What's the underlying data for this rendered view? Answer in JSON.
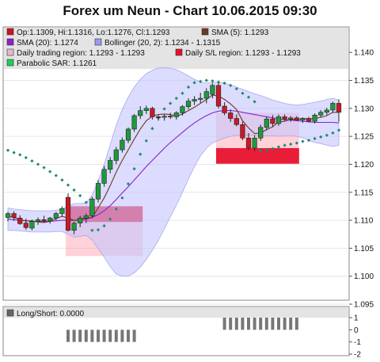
{
  "chart_data": {
    "title": "Forex um Neun - Chart 10.06.2015 09:30",
    "type": "candlestick",
    "ylim": [
      1.095,
      1.143
    ],
    "yticks": [
      "1.095",
      "1.100",
      "1.105",
      "1.110",
      "1.115",
      "1.120",
      "1.125",
      "1.130",
      "1.135",
      "1.140"
    ],
    "legend": [
      {
        "label": "Op:1.1309, Hi:1.1316, Lo:1.1276, Cl:1.1293",
        "color": "#cc1122"
      },
      {
        "label": "SMA (5): 1.1293",
        "color": "#6b3a22"
      },
      {
        "label": "SMA (20): 1.1274",
        "color": "#8a22cc"
      },
      {
        "label": "Bollinger (20, 2): 1.1234 - 1.1315",
        "color": "#9999ee"
      },
      {
        "label": "Daily trading region: 1.1293 - 1.1293",
        "color": "#e8b8c8"
      },
      {
        "label": "Daily S/L region: 1.1293 - 1.1293",
        "color": "#e8112d"
      },
      {
        "label": "Parabolic SAR: 1.1261",
        "color": "#22cc55"
      }
    ],
    "candles": [
      [
        1.1105,
        1.1115,
        1.1098,
        1.1112
      ],
      [
        1.1112,
        1.1116,
        1.1099,
        1.1105
      ],
      [
        1.1104,
        1.1109,
        1.1092,
        1.1094
      ],
      [
        1.1095,
        1.1103,
        1.1083,
        1.1087
      ],
      [
        1.1086,
        1.1101,
        1.1082,
        1.1098
      ],
      [
        1.1098,
        1.1105,
        1.1092,
        1.1101
      ],
      [
        1.1101,
        1.1108,
        1.1096,
        1.1099
      ],
      [
        1.1099,
        1.1106,
        1.1094,
        1.1104
      ],
      [
        1.1104,
        1.1115,
        1.11,
        1.1112
      ],
      [
        1.1112,
        1.1125,
        1.1107,
        1.1121
      ],
      [
        1.1141,
        1.1148,
        1.108,
        1.1082
      ],
      [
        1.1082,
        1.1097,
        1.1075,
        1.1095
      ],
      [
        1.1095,
        1.1108,
        1.1088,
        1.1104
      ],
      [
        1.1104,
        1.1112,
        1.1095,
        1.1108
      ],
      [
        1.1108,
        1.1142,
        1.1104,
        1.1138
      ],
      [
        1.1138,
        1.1172,
        1.1132,
        1.1166
      ],
      [
        1.1166,
        1.1197,
        1.116,
        1.1191
      ],
      [
        1.1191,
        1.1213,
        1.1184,
        1.1207
      ],
      [
        1.1207,
        1.1231,
        1.12,
        1.1226
      ],
      [
        1.1226,
        1.1248,
        1.1221,
        1.1243
      ],
      [
        1.1243,
        1.1266,
        1.1238,
        1.1263
      ],
      [
        1.1263,
        1.129,
        1.1258,
        1.1287
      ],
      [
        1.1287,
        1.1304,
        1.1281,
        1.1296
      ],
      [
        1.1296,
        1.1305,
        1.129,
        1.13
      ],
      [
        1.13,
        1.1303,
        1.128,
        1.1285
      ],
      [
        1.1285,
        1.1288,
        1.1278,
        1.1284
      ],
      [
        1.1284,
        1.1289,
        1.1278,
        1.1286
      ],
      [
        1.1286,
        1.1292,
        1.1281,
        1.1285
      ],
      [
        1.1285,
        1.1295,
        1.128,
        1.1292
      ],
      [
        1.1292,
        1.1306,
        1.1287,
        1.1303
      ],
      [
        1.1303,
        1.1318,
        1.1298,
        1.1313
      ],
      [
        1.1313,
        1.1322,
        1.1306,
        1.1316
      ],
      [
        1.1316,
        1.1328,
        1.131,
        1.1318
      ],
      [
        1.1318,
        1.1336,
        1.1309,
        1.133
      ],
      [
        1.1325,
        1.1345,
        1.1318,
        1.1341
      ],
      [
        1.1341,
        1.1346,
        1.13,
        1.1304
      ],
      [
        1.1304,
        1.1311,
        1.1288,
        1.1292
      ],
      [
        1.1292,
        1.1298,
        1.1276,
        1.1282
      ],
      [
        1.1282,
        1.1289,
        1.1268,
        1.1271
      ],
      [
        1.1271,
        1.1276,
        1.1243,
        1.1247
      ],
      [
        1.1247,
        1.1256,
        1.1225,
        1.1229
      ],
      [
        1.1229,
        1.1252,
        1.1224,
        1.1247
      ],
      [
        1.1247,
        1.1271,
        1.1242,
        1.1266
      ],
      [
        1.1266,
        1.1286,
        1.1261,
        1.1281
      ],
      [
        1.1281,
        1.1288,
        1.1268,
        1.1273
      ],
      [
        1.1273,
        1.1289,
        1.1269,
        1.1285
      ],
      [
        1.1285,
        1.1289,
        1.1278,
        1.1281
      ],
      [
        1.1281,
        1.1286,
        1.1276,
        1.1283
      ],
      [
        1.1283,
        1.1286,
        1.1278,
        1.1279
      ],
      [
        1.1279,
        1.1284,
        1.1274,
        1.1282
      ],
      [
        1.1282,
        1.1285,
        1.1275,
        1.1277
      ],
      [
        1.1277,
        1.1291,
        1.1273,
        1.1288
      ],
      [
        1.1288,
        1.1297,
        1.1284,
        1.1293
      ],
      [
        1.1293,
        1.1301,
        1.1288,
        1.1297
      ],
      [
        1.1297,
        1.1312,
        1.1292,
        1.1309
      ],
      [
        1.1309,
        1.1316,
        1.1276,
        1.1293
      ]
    ],
    "sma5": [
      1.1107,
      1.1105,
      1.1101,
      1.1099,
      1.1099,
      1.1097,
      1.1096,
      1.1098,
      1.1103,
      1.1107,
      1.1104,
      1.11,
      1.1101,
      1.1104,
      1.1105,
      1.1122,
      1.114,
      1.1162,
      1.1186,
      1.1207,
      1.1226,
      1.1245,
      1.1263,
      1.1278,
      1.1286,
      1.1289,
      1.129,
      1.1289,
      1.1286,
      1.129,
      1.1296,
      1.1302,
      1.1309,
      1.1316,
      1.1324,
      1.1322,
      1.1316,
      1.1308,
      1.1298,
      1.1278,
      1.1265,
      1.1255,
      1.1256,
      1.1262,
      1.1267,
      1.1276,
      1.1277,
      1.128,
      1.128,
      1.1282,
      1.1281,
      1.1282,
      1.1284,
      1.1287,
      1.1293,
      1.1293
    ],
    "sma20": [
      1.1102,
      1.1101,
      1.11,
      1.1099,
      1.1098,
      1.1098,
      1.1098,
      1.1098,
      1.1099,
      1.11,
      1.11,
      1.11,
      1.1101,
      1.1102,
      1.1105,
      1.111,
      1.1117,
      1.1126,
      1.1137,
      1.1149,
      1.116,
      1.1172,
      1.1184,
      1.1196,
      1.1207,
      1.1218,
      1.1229,
      1.1239,
      1.1248,
      1.1257,
      1.1266,
      1.1274,
      1.1281,
      1.1287,
      1.1292,
      1.1295,
      1.1296,
      1.1296,
      1.1295,
      1.1293,
      1.1291,
      1.1289,
      1.1287,
      1.1285,
      1.1283,
      1.1281,
      1.128,
      1.1279,
      1.1278,
      1.1277,
      1.1276,
      1.1275,
      1.1275,
      1.1275,
      1.1275,
      1.1274
    ],
    "bb_upper": [
      1.1122,
      1.112,
      1.1119,
      1.1118,
      1.1117,
      1.1117,
      1.1117,
      1.1117,
      1.1118,
      1.112,
      1.1125,
      1.113,
      1.113,
      1.1131,
      1.1145,
      1.117,
      1.12,
      1.1235,
      1.127,
      1.1298,
      1.132,
      1.1338,
      1.1352,
      1.1362,
      1.1368,
      1.1372,
      1.1373,
      1.1372,
      1.1369,
      1.1364,
      1.1358,
      1.1352,
      1.1347,
      1.1345,
      1.1346,
      1.1347,
      1.1345,
      1.1342,
      1.1338,
      1.1334,
      1.133,
      1.1326,
      1.1323,
      1.1319,
      1.1315,
      1.1312,
      1.1309,
      1.1307,
      1.1306,
      1.1307,
      1.1309,
      1.1311,
      1.1313,
      1.1316,
      1.1318,
      1.1315
    ],
    "bb_lower": [
      1.1082,
      1.1082,
      1.1081,
      1.108,
      1.1079,
      1.1079,
      1.1079,
      1.1079,
      1.108,
      1.108,
      1.1075,
      1.107,
      1.1071,
      1.1073,
      1.1065,
      1.105,
      1.1034,
      1.1017,
      1.1004,
      1.1,
      1.1,
      1.1006,
      1.1016,
      1.103,
      1.1046,
      1.1064,
      1.1085,
      1.1106,
      1.1127,
      1.115,
      1.1174,
      1.1196,
      1.1215,
      1.1229,
      1.1238,
      1.1243,
      1.1247,
      1.125,
      1.1252,
      1.1252,
      1.1252,
      1.1252,
      1.1251,
      1.1251,
      1.1251,
      1.125,
      1.1251,
      1.1251,
      1.125,
      1.1247,
      1.1243,
      1.1239,
      1.1237,
      1.1234,
      1.1232,
      1.1234
    ],
    "sar": [
      1.1225,
      1.1221,
      1.1217,
      1.1212,
      1.1206,
      1.12,
      1.1194,
      1.1187,
      1.118,
      1.1172,
      1.1163,
      1.1154,
      1.1144,
      1.1132,
      1.1082,
      1.1083,
      1.109,
      1.1102,
      1.112,
      1.114,
      1.1165,
      1.1192,
      1.1218,
      1.1242,
      1.1264,
      1.1283,
      1.1299,
      1.1309,
      1.1318,
      1.1327,
      1.1338,
      1.1346,
      1.1348,
      1.135,
      1.1349,
      1.1347,
      1.1345,
      1.1341,
      1.1335,
      1.1327,
      1.132,
      1.1312,
      1.1224,
      1.1226,
      1.1228,
      1.1231,
      1.1234,
      1.1236,
      1.1238,
      1.1241,
      1.1243,
      1.1246,
      1.1249,
      1.1252,
      1.1256,
      1.1261
    ],
    "trading_regions": [
      {
        "start": 10,
        "end": 22,
        "high": 1.1125,
        "low": 1.1036
      },
      {
        "start": 35,
        "end": 48,
        "high": 1.1292,
        "low": 1.1229
      }
    ],
    "sl_regions": [
      {
        "start": 10,
        "end": 22,
        "high": 1.1125,
        "low": 1.1097
      },
      {
        "start": 35,
        "end": 48,
        "high": 1.1229,
        "low": 1.1201
      }
    ],
    "sub_panel": {
      "legend": "Long/Short: 0.0000",
      "ylim": [
        -2,
        1
      ],
      "yticks": [
        "1",
        "0",
        "-1",
        "-2"
      ],
      "values": [
        0,
        0,
        0,
        0,
        0,
        0,
        0,
        0,
        0,
        0,
        -1,
        -1,
        -1,
        -1,
        -1,
        -1,
        -1,
        -1,
        -1,
        -1,
        -1,
        -1,
        0,
        0,
        0,
        0,
        0,
        0,
        0,
        0,
        0,
        0,
        0,
        0,
        0,
        0,
        1,
        1,
        1,
        1,
        1,
        1,
        1,
        1,
        1,
        1,
        1,
        1,
        1,
        0,
        0,
        0,
        0,
        0,
        0,
        0
      ]
    }
  }
}
